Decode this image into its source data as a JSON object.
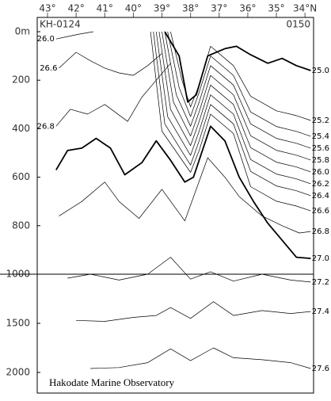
{
  "chart_data": {
    "type": "contour",
    "xticks": [
      {
        "value": 43,
        "label": "43°"
      },
      {
        "value": 42,
        "label": "42°"
      },
      {
        "value": 41,
        "label": "41°"
      },
      {
        "value": 40,
        "label": "40°"
      },
      {
        "value": 39,
        "label": "39°"
      },
      {
        "value": 38,
        "label": "38°"
      },
      {
        "value": 37,
        "label": "37°"
      },
      {
        "value": 36,
        "label": "36°"
      },
      {
        "value": 35,
        "label": "35°"
      },
      {
        "value": 34,
        "label": "34°N"
      }
    ],
    "xlim": [
      43.36,
      33.7
    ],
    "xaxis_position": "top",
    "yticks": [
      {
        "value": 0,
        "label": "0m"
      },
      200,
      400,
      600,
      800,
      1000,
      1500,
      2000
    ],
    "ylim": [
      0,
      2210
    ],
    "y_break": 1000,
    "y_inverted": true,
    "start_station": "KH-0124",
    "end_station": "0150",
    "credit": "Hakodate Marine Observatory",
    "series": [
      {
        "name": "26.0",
        "color": "#000",
        "style": "thin",
        "label_side": "left",
        "x": [
          42.7,
          42.3,
          41.9,
          41.4
        ],
        "values": [
          30,
          20,
          10,
          0
        ]
      },
      {
        "name": "26.6",
        "color": "#000",
        "style": "thin",
        "label_side": "left",
        "x": [
          42.6,
          42.0,
          41.5,
          41.0,
          40.5,
          40.0,
          39.5,
          39.0
        ],
        "values": [
          150,
          85,
          120,
          150,
          170,
          180,
          140,
          90
        ]
      },
      {
        "name": "26.8",
        "color": "#000",
        "style": "thin",
        "label_side": "left",
        "x": [
          42.7,
          42.2,
          41.6,
          41.0,
          40.2,
          39.7,
          39.2,
          38.7
        ],
        "values": [
          390,
          320,
          340,
          300,
          370,
          270,
          200,
          130
        ]
      },
      {
        "name": "25.0",
        "color": "#000",
        "style": "bold",
        "label_side": "right",
        "x": [
          38.9,
          38.4,
          38.1,
          37.8,
          37.4,
          36.8,
          36.4,
          35.9,
          35.3,
          34.8,
          34.3,
          33.8
        ],
        "values": [
          0,
          100,
          290,
          260,
          100,
          70,
          60,
          95,
          130,
          110,
          140,
          160
        ]
      },
      {
        "name": "25.2",
        "color": "#000",
        "style": "thin",
        "label_side": "right",
        "x": [
          38.7,
          38.3,
          38.0,
          37.7,
          37.3,
          36.5,
          35.9,
          35.0,
          34.3,
          33.8
        ],
        "values": [
          0,
          200,
          310,
          220,
          60,
          140,
          266,
          326,
          346,
          366
        ]
      },
      {
        "name": "25.4",
        "color": "#000",
        "style": "thin",
        "label_side": "right",
        "x": [
          38.8,
          38.4,
          38.0,
          37.7,
          37.3,
          36.5,
          35.9,
          35.0,
          34.3,
          33.8
        ],
        "values": [
          0,
          230,
          350,
          250,
          100,
          180,
          331,
          391,
          411,
          431
        ]
      },
      {
        "name": "25.6",
        "color": "#000",
        "style": "thin",
        "label_side": "right",
        "x": [
          38.9,
          38.5,
          38.0,
          37.7,
          37.3,
          36.5,
          35.9,
          35.0,
          34.3,
          33.8
        ],
        "values": [
          0,
          260,
          390,
          290,
          140,
          220,
          380,
          440,
          460,
          480
        ]
      },
      {
        "name": "25.8",
        "color": "#000",
        "style": "thin",
        "label_side": "right",
        "x": [
          39.0,
          38.6,
          38.0,
          37.7,
          37.3,
          36.5,
          35.9,
          35.0,
          34.3,
          33.8
        ],
        "values": [
          0,
          290,
          430,
          330,
          180,
          260,
          429,
          489,
          509,
          529
        ]
      },
      {
        "name": "26.0",
        "color": "#000",
        "style": "thin",
        "label_side": "right",
        "x": [
          39.1,
          38.7,
          38.0,
          37.7,
          37.3,
          36.5,
          35.9,
          35.0,
          34.3,
          33.8
        ],
        "values": [
          0,
          320,
          470,
          370,
          220,
          300,
          478,
          538,
          558,
          578
        ]
      },
      {
        "name": "26.2",
        "color": "#000",
        "style": "thin",
        "label_side": "right",
        "x": [
          39.2,
          38.8,
          38.0,
          37.7,
          37.3,
          36.5,
          35.9,
          35.0,
          34.3,
          33.8
        ],
        "values": [
          0,
          350,
          510,
          410,
          260,
          340,
          527,
          587,
          607,
          627
        ]
      },
      {
        "name": "26.4",
        "color": "#000",
        "style": "thin",
        "label_side": "right",
        "x": [
          39.3,
          38.9,
          38.0,
          37.7,
          37.3,
          36.5,
          35.9,
          35.0,
          34.3,
          33.8
        ],
        "values": [
          0,
          380,
          550,
          450,
          300,
          380,
          576,
          636,
          656,
          676
        ]
      },
      {
        "name": "26.6",
        "color": "#000",
        "style": "thin",
        "label_side": "right",
        "x": [
          39.4,
          39.0,
          38.0,
          37.7,
          37.3,
          36.5,
          35.9,
          35.0,
          34.3,
          33.8
        ],
        "values": [
          0,
          410,
          580,
          490,
          340,
          420,
          639,
          699,
          719,
          739
        ]
      },
      {
        "name": "26.8",
        "color": "#000",
        "style": "thin",
        "label_side": "right",
        "x": [
          42.6,
          41.8,
          41.0,
          40.5,
          39.8,
          39.0,
          38.2,
          37.4,
          36.8,
          36.3,
          35.5,
          34.8,
          34.2,
          33.8
        ],
        "values": [
          760,
          700,
          620,
          700,
          770,
          650,
          780,
          520,
          600,
          680,
          760,
          800,
          830,
          824
        ]
      },
      {
        "name": "27.0",
        "color": "#000",
        "style": "bold",
        "label_side": "right",
        "x": [
          42.7,
          42.3,
          41.8,
          41.3,
          40.8,
          40.3,
          39.7,
          39.2,
          38.7,
          38.2,
          37.9,
          37.3,
          36.8,
          36.3,
          35.8,
          35.3,
          34.8,
          34.3,
          33.8
        ],
        "values": [
          570,
          490,
          480,
          440,
          480,
          590,
          540,
          450,
          530,
          620,
          600,
          390,
          450,
          600,
          700,
          790,
          860,
          930,
          935
        ]
      },
      {
        "name": "27.2",
        "color": "#000",
        "style": "thin",
        "label_side": "right",
        "x": [
          42.3,
          41.5,
          40.5,
          39.5,
          38.7,
          38.0,
          37.3,
          36.5,
          35.5,
          34.5,
          33.8
        ],
        "values": [
          1040,
          1000,
          1060,
          1000,
          930,
          1050,
          990,
          1070,
          1000,
          1060,
          1080
        ]
      },
      {
        "name": "27.4",
        "color": "#000",
        "style": "thin",
        "label_side": "right",
        "x": [
          42.0,
          41.0,
          40.0,
          39.2,
          38.7,
          38.0,
          37.2,
          36.5,
          35.5,
          34.5,
          33.8
        ],
        "values": [
          1470,
          1480,
          1440,
          1420,
          1340,
          1450,
          1280,
          1420,
          1370,
          1400,
          1380
        ]
      },
      {
        "name": "27.6",
        "color": "#000",
        "style": "thin",
        "label_side": "right",
        "x": [
          41.5,
          40.5,
          39.5,
          38.7,
          38.0,
          37.2,
          36.5,
          35.5,
          34.5,
          33.8
        ],
        "values": [
          1960,
          1950,
          1900,
          1760,
          1880,
          1750,
          1850,
          1870,
          1900,
          1960
        ]
      }
    ]
  }
}
